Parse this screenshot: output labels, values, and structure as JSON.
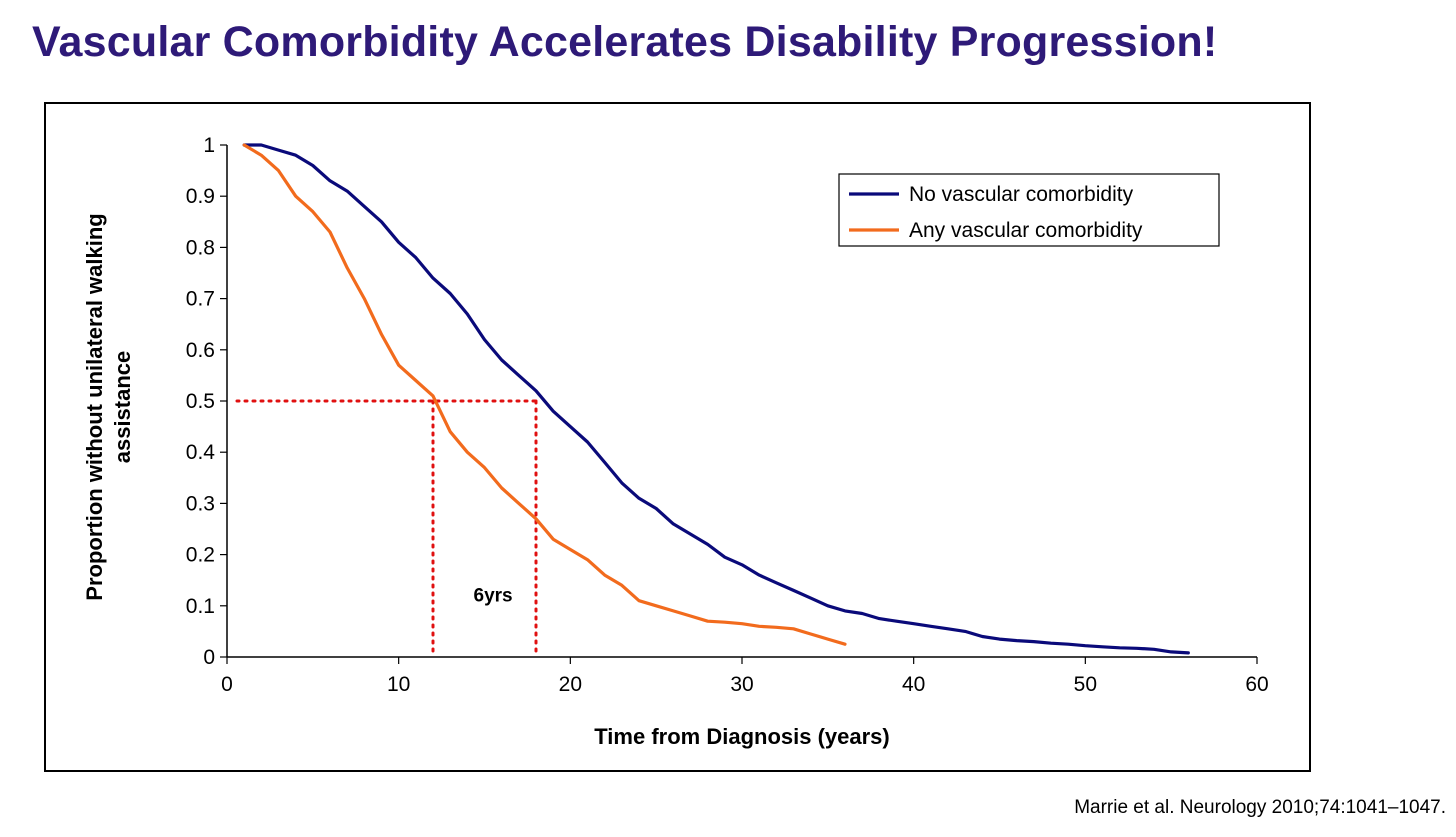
{
  "slide": {
    "title": "Vascular Comorbidity Accelerates Disability Progression!",
    "citation": "Marrie et al. Neurology 2010;74:1041–1047."
  },
  "chart_data": {
    "type": "line",
    "title": "",
    "xlabel": "Time from Diagnosis (years)",
    "ylabel_lines": [
      "Proportion without unilateral walking",
      "assistance"
    ],
    "xlim": [
      0,
      60
    ],
    "ylim": [
      0,
      1
    ],
    "x_ticks": [
      0,
      10,
      20,
      30,
      40,
      50,
      60
    ],
    "y_ticks": [
      0,
      0.1,
      0.2,
      0.3,
      0.4,
      0.5,
      0.6,
      0.7,
      0.8,
      0.9,
      1
    ],
    "grid": false,
    "legend_position": "top-right",
    "series": [
      {
        "name": "No vascular comorbidity",
        "color": "#0a0a7a",
        "points": [
          [
            1,
            1
          ],
          [
            2,
            1
          ],
          [
            3,
            0.99
          ],
          [
            4,
            0.98
          ],
          [
            5,
            0.96
          ],
          [
            6,
            0.93
          ],
          [
            7,
            0.91
          ],
          [
            8,
            0.88
          ],
          [
            9,
            0.85
          ],
          [
            10,
            0.81
          ],
          [
            11,
            0.78
          ],
          [
            12,
            0.74
          ],
          [
            13,
            0.71
          ],
          [
            14,
            0.67
          ],
          [
            15,
            0.62
          ],
          [
            16,
            0.58
          ],
          [
            17,
            0.55
          ],
          [
            18,
            0.52
          ],
          [
            19,
            0.48
          ],
          [
            20,
            0.45
          ],
          [
            21,
            0.42
          ],
          [
            22,
            0.38
          ],
          [
            23,
            0.34
          ],
          [
            24,
            0.31
          ],
          [
            25,
            0.29
          ],
          [
            26,
            0.26
          ],
          [
            27,
            0.24
          ],
          [
            28,
            0.22
          ],
          [
            29,
            0.195
          ],
          [
            30,
            0.18
          ],
          [
            31,
            0.16
          ],
          [
            32,
            0.145
          ],
          [
            33,
            0.13
          ],
          [
            34,
            0.115
          ],
          [
            35,
            0.1
          ],
          [
            36,
            0.09
          ],
          [
            37,
            0.085
          ],
          [
            38,
            0.075
          ],
          [
            39,
            0.07
          ],
          [
            40,
            0.065
          ],
          [
            41,
            0.06
          ],
          [
            42,
            0.055
          ],
          [
            43,
            0.05
          ],
          [
            44,
            0.04
          ],
          [
            45,
            0.035
          ],
          [
            46,
            0.032
          ],
          [
            47,
            0.03
          ],
          [
            48,
            0.027
          ],
          [
            49,
            0.025
          ],
          [
            50,
            0.022
          ],
          [
            51,
            0.02
          ],
          [
            52,
            0.018
          ],
          [
            53,
            0.017
          ],
          [
            54,
            0.015
          ],
          [
            55,
            0.01
          ],
          [
            56,
            0.008
          ]
        ]
      },
      {
        "name": "Any vascular comorbidity",
        "color": "#f26b1d",
        "points": [
          [
            1,
            1
          ],
          [
            2,
            0.98
          ],
          [
            3,
            0.95
          ],
          [
            4,
            0.9
          ],
          [
            5,
            0.87
          ],
          [
            6,
            0.83
          ],
          [
            7,
            0.76
          ],
          [
            8,
            0.7
          ],
          [
            9,
            0.63
          ],
          [
            10,
            0.57
          ],
          [
            11,
            0.54
          ],
          [
            12,
            0.51
          ],
          [
            13,
            0.44
          ],
          [
            14,
            0.4
          ],
          [
            15,
            0.37
          ],
          [
            16,
            0.33
          ],
          [
            17,
            0.3
          ],
          [
            18,
            0.27
          ],
          [
            19,
            0.23
          ],
          [
            20,
            0.21
          ],
          [
            21,
            0.19
          ],
          [
            22,
            0.16
          ],
          [
            23,
            0.14
          ],
          [
            24,
            0.11
          ],
          [
            25,
            0.1
          ],
          [
            26,
            0.09
          ],
          [
            27,
            0.08
          ],
          [
            28,
            0.07
          ],
          [
            29,
            0.068
          ],
          [
            30,
            0.065
          ],
          [
            31,
            0.06
          ],
          [
            32,
            0.058
          ],
          [
            33,
            0.055
          ],
          [
            34,
            0.045
          ],
          [
            35,
            0.035
          ],
          [
            36,
            0.025
          ]
        ]
      }
    ],
    "reference_lines": {
      "color": "#e01010",
      "y": 0.5,
      "x_values": [
        12,
        18
      ]
    },
    "annotations": [
      {
        "text": "6yrs",
        "x": 15.5,
        "y": 0.12
      }
    ]
  }
}
